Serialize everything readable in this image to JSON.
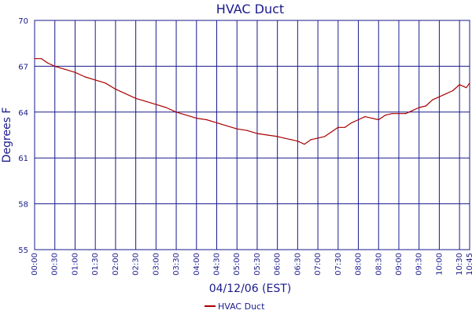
{
  "chart_data": {
    "type": "line",
    "title": "HVAC Duct",
    "xlabel": "04/12/06 (EST)",
    "ylabel": "Degrees F",
    "ylim": [
      55,
      70
    ],
    "yticks": [
      "55",
      "58",
      "61",
      "64",
      "67",
      "70"
    ],
    "xlim": [
      "00:00",
      "10:45"
    ],
    "xticks": [
      "00:00",
      "00:30",
      "01:00",
      "01:30",
      "02:00",
      "02:30",
      "03:00",
      "03:30",
      "04:00",
      "04:30",
      "05:00",
      "05:30",
      "06:00",
      "06:30",
      "07:00",
      "07:30",
      "08:00",
      "08:30",
      "09:00",
      "09:30",
      "10:00",
      "10:30",
      "10:45"
    ],
    "grid": true,
    "legend_position": "bottom",
    "colors": {
      "line": "#aa0000",
      "grid": "#1a1a8c",
      "text": "#1a1a8c"
    },
    "series": [
      {
        "name": "HVAC Duct",
        "x": [
          "00:00",
          "00:10",
          "00:20",
          "00:30",
          "00:45",
          "01:00",
          "01:15",
          "01:30",
          "01:45",
          "02:00",
          "02:15",
          "02:30",
          "02:45",
          "03:00",
          "03:15",
          "03:30",
          "03:45",
          "04:00",
          "04:15",
          "04:30",
          "04:45",
          "05:00",
          "05:15",
          "05:30",
          "05:45",
          "06:00",
          "06:10",
          "06:20",
          "06:30",
          "06:40",
          "06:50",
          "07:00",
          "07:10",
          "07:20",
          "07:30",
          "07:40",
          "07:50",
          "08:00",
          "08:10",
          "08:20",
          "08:30",
          "08:40",
          "08:50",
          "09:00",
          "09:10",
          "09:20",
          "09:30",
          "09:40",
          "09:50",
          "10:00",
          "10:10",
          "10:20",
          "10:30",
          "10:40",
          "10:45"
        ],
        "y": [
          67.5,
          67.5,
          67.2,
          67.0,
          66.8,
          66.6,
          66.3,
          66.1,
          65.9,
          65.5,
          65.2,
          64.9,
          64.7,
          64.5,
          64.3,
          64.0,
          63.8,
          63.6,
          63.5,
          63.3,
          63.1,
          62.9,
          62.8,
          62.6,
          62.5,
          62.4,
          62.3,
          62.2,
          62.1,
          61.9,
          62.2,
          62.3,
          62.4,
          62.7,
          63.0,
          63.0,
          63.3,
          63.5,
          63.7,
          63.6,
          63.5,
          63.8,
          63.9,
          63.9,
          63.9,
          64.1,
          64.3,
          64.4,
          64.8,
          65.0,
          65.2,
          65.4,
          65.8,
          65.6,
          65.9
        ]
      }
    ]
  }
}
